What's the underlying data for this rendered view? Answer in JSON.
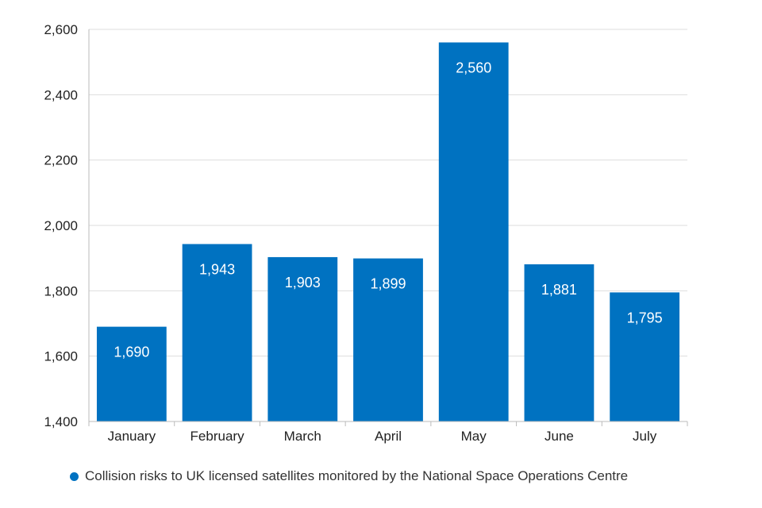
{
  "chart_data": {
    "type": "bar",
    "categories": [
      "January",
      "February",
      "March",
      "April",
      "May",
      "June",
      "July"
    ],
    "series": [
      {
        "name": "Collision risks to UK licensed satellites monitored by the National Space Operations Centre",
        "values": [
          1690,
          1943,
          1903,
          1899,
          2560,
          1881,
          1795
        ],
        "value_labels": [
          "1,690",
          "1,943",
          "1,903",
          "1,899",
          "2,560",
          "1,881",
          "1,795"
        ]
      }
    ],
    "ylim": [
      1400,
      2600
    ],
    "yticks": [
      1400,
      1600,
      1800,
      2000,
      2200,
      2400,
      2600
    ],
    "ytick_labels": [
      "1,400",
      "1,600",
      "1,800",
      "2,000",
      "2,200",
      "2,400",
      "2,600"
    ],
    "grid": true,
    "legend_position": "bottom-left",
    "colors": {
      "bar": "#0072C1",
      "grid": "#DDDDDD",
      "axis": "#BBBBBB"
    }
  }
}
